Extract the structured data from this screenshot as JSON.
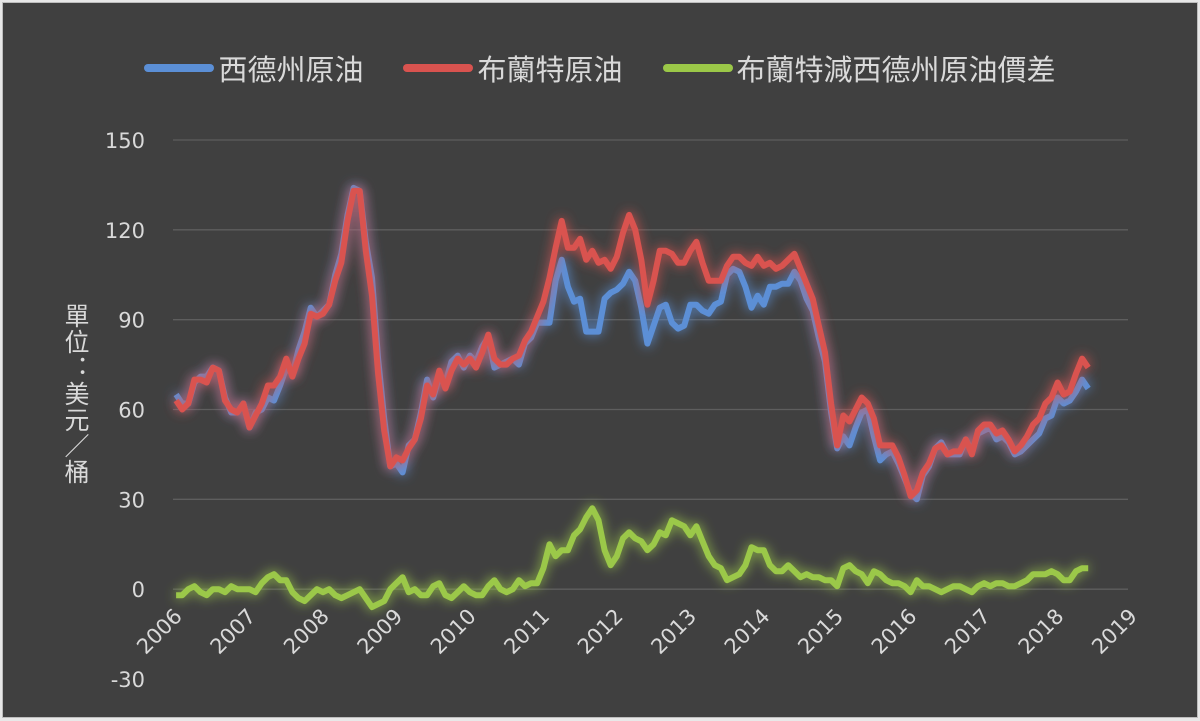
{
  "chart_data": {
    "type": "line",
    "title": "",
    "xlabel": "",
    "ylabel": "單位：美元／桶",
    "x_start": "2006-01",
    "x_frequency": "monthly",
    "xlim": [
      2006,
      2019
    ],
    "ylim": [
      -30,
      150
    ],
    "yticks": [
      "150",
      "120",
      "90",
      "60",
      "30",
      "0",
      "-30"
    ],
    "xticks": [
      "2006",
      "2007",
      "2008",
      "2009",
      "2010",
      "2011",
      "2012",
      "2013",
      "2014",
      "2015",
      "2016",
      "2017",
      "2018",
      "2019"
    ],
    "grid": "horizontal",
    "legend_position": "top",
    "background": "#404040",
    "series": [
      {
        "name": "西德州原油",
        "color": "#5b8fd6",
        "values": [
          65,
          62,
          62,
          69,
          71,
          71,
          74,
          73,
          64,
          59,
          59,
          62,
          54,
          59,
          60,
          64,
          63,
          68,
          74,
          72,
          80,
          86,
          94,
          91,
          93,
          95,
          105,
          112,
          125,
          134,
          133,
          116,
          104,
          77,
          57,
          41,
          42,
          39,
          48,
          50,
          59,
          70,
          64,
          71,
          69,
          76,
          78,
          74,
          78,
          76,
          81,
          84,
          74,
          75,
          76,
          77,
          75,
          82,
          84,
          89,
          89,
          89,
          103,
          110,
          101,
          96,
          97,
          86,
          86,
          86,
          97,
          99,
          100,
          102,
          106,
          103,
          94,
          82,
          88,
          94,
          95,
          89,
          87,
          88,
          95,
          95,
          93,
          92,
          95,
          96,
          105,
          107,
          106,
          101,
          94,
          98,
          95,
          101,
          101,
          102,
          102,
          106,
          103,
          97,
          93,
          84,
          76,
          59,
          47,
          51,
          48,
          54,
          59,
          60,
          51,
          43,
          45,
          46,
          42,
          37,
          32,
          30,
          38,
          41,
          47,
          49,
          45,
          45,
          45,
          50,
          46,
          52,
          53,
          54,
          50,
          51,
          49,
          45,
          46,
          48,
          50,
          52,
          57,
          58,
          64,
          62,
          63,
          66,
          70,
          67
        ]
      },
      {
        "name": "布蘭特原油",
        "color": "#d9534f",
        "values": [
          63,
          60,
          62,
          70,
          70,
          69,
          74,
          73,
          63,
          60,
          59,
          62,
          54,
          58,
          62,
          68,
          68,
          71,
          77,
          71,
          77,
          82,
          92,
          91,
          92,
          95,
          103,
          109,
          123,
          133,
          133,
          113,
          98,
          72,
          53,
          41,
          44,
          43,
          47,
          50,
          57,
          68,
          65,
          73,
          67,
          73,
          77,
          75,
          77,
          74,
          79,
          85,
          77,
          75,
          75,
          77,
          78,
          83,
          86,
          91,
          96,
          104,
          114,
          123,
          114,
          114,
          117,
          110,
          113,
          109,
          110,
          107,
          111,
          119,
          125,
          120,
          110,
          95,
          103,
          113,
          113,
          112,
          109,
          109,
          113,
          116,
          109,
          103,
          103,
          103,
          108,
          111,
          111,
          109,
          108,
          111,
          108,
          109,
          107,
          108,
          110,
          112,
          107,
          102,
          97,
          88,
          79,
          62,
          48,
          58,
          56,
          60,
          64,
          62,
          57,
          48,
          48,
          48,
          44,
          38,
          31,
          33,
          39,
          42,
          47,
          48,
          45,
          46,
          46,
          50,
          45,
          53,
          55,
          55,
          52,
          53,
          50,
          46,
          48,
          51,
          55,
          57,
          62,
          64,
          69,
          65,
          66,
          72,
          77,
          74
        ]
      },
      {
        "name": "布蘭特減西德州原油價差",
        "color": "#9bc848",
        "values": [
          -2,
          -2,
          0,
          1,
          -1,
          -2,
          0,
          0,
          -1,
          1,
          0,
          0,
          0,
          -1,
          2,
          4,
          5,
          3,
          3,
          -1,
          -3,
          -4,
          -2,
          0,
          -1,
          0,
          -2,
          -3,
          -2,
          -1,
          0,
          -3,
          -6,
          -5,
          -4,
          0,
          2,
          4,
          -1,
          0,
          -2,
          -2,
          1,
          2,
          -2,
          -3,
          -1,
          1,
          -1,
          -2,
          -2,
          1,
          3,
          0,
          -1,
          0,
          3,
          1,
          2,
          2,
          7,
          15,
          11,
          13,
          13,
          18,
          20,
          24,
          27,
          23,
          13,
          8,
          11,
          17,
          19,
          17,
          16,
          13,
          15,
          19,
          18,
          23,
          22,
          21,
          18,
          21,
          16,
          11,
          8,
          7,
          3,
          4,
          5,
          8,
          14,
          13,
          13,
          8,
          6,
          6,
          8,
          6,
          4,
          5,
          4,
          4,
          3,
          3,
          1,
          7,
          8,
          6,
          5,
          2,
          6,
          5,
          3,
          2,
          2,
          1,
          -1,
          3,
          1,
          1,
          0,
          -1,
          0,
          1,
          1,
          0,
          -1,
          1,
          2,
          1,
          2,
          2,
          1,
          1,
          2,
          3,
          5,
          5,
          5,
          6,
          5,
          3,
          3,
          6,
          7,
          7
        ]
      }
    ]
  }
}
